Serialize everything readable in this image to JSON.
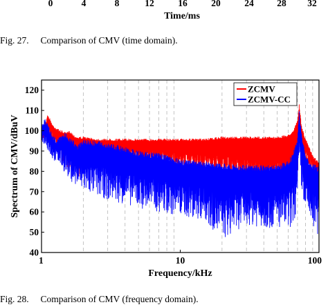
{
  "top_chart": {
    "xticks": [
      "0",
      "4",
      "8",
      "12",
      "16",
      "20",
      "24",
      "28",
      "32"
    ],
    "xlabel": "Time/ms"
  },
  "captions": {
    "fig27": "Fig. 27.     Comparison of CMV (time domain).",
    "fig28": "Fig. 28.     Comparison of CMV (frequency domain)."
  },
  "colors": {
    "ZCMV": "#ff0000",
    "ZCMV-CC": "#0000ff"
  },
  "chart_data": {
    "type": "line",
    "title": "",
    "xlabel": "Frequency/kHz",
    "ylabel": "Spectrum of CMV/dBuV",
    "xscale": "log",
    "xlim": [
      1,
      100
    ],
    "ylim": [
      40,
      125
    ],
    "xticks": [
      "1",
      "10",
      "100"
    ],
    "yticks": [
      "40",
      "50",
      "60",
      "70",
      "80",
      "90",
      "100",
      "110",
      "120"
    ],
    "grid": "dashed vertical at 2,3,4,5,6,7,8,9,20,30,40,50,60,70,80,90 kHz",
    "legend": {
      "placement": "top-right",
      "entries": [
        "ZCMV",
        "ZCMV-CC"
      ]
    },
    "series": [
      {
        "name": "ZCMV",
        "color": "#ff0000",
        "x": [
          1,
          1.05,
          1.1,
          1.15,
          1.2,
          1.3,
          1.4,
          1.5,
          1.6,
          1.7,
          1.8,
          2,
          2.5,
          3,
          4,
          5,
          7,
          10,
          15,
          20,
          30,
          40,
          50,
          60,
          65,
          70,
          72,
          75,
          80,
          85,
          90,
          95,
          100
        ],
        "upper": [
          97,
          100,
          108,
          106,
          103,
          101,
          100,
          99,
          100,
          98,
          97,
          97,
          96,
          96,
          96,
          96,
          96,
          96,
          96,
          97,
          97,
          97,
          97,
          98,
          100,
          105,
          113,
          102,
          96,
          92,
          88,
          86,
          85
        ],
        "lower": [
          95,
          96,
          97,
          96,
          95,
          92,
          86,
          79,
          82,
          86,
          76,
          80,
          86,
          87,
          85,
          84,
          83,
          80,
          79,
          77,
          72,
          70,
          69,
          68,
          70,
          78,
          93,
          88,
          84,
          82,
          79,
          78,
          76
        ]
      },
      {
        "name": "ZCMV-CC",
        "color": "#0000ff",
        "x": [
          1,
          1.05,
          1.1,
          1.15,
          1.2,
          1.3,
          1.4,
          1.5,
          1.6,
          1.7,
          1.8,
          2,
          2.5,
          3,
          4,
          5,
          7,
          10,
          15,
          20,
          30,
          40,
          50,
          60,
          65,
          70,
          72,
          75,
          80,
          85,
          90,
          95,
          100
        ],
        "upper": [
          102,
          106,
          104,
          101,
          98,
          96,
          98,
          99,
          97,
          95,
          93,
          96,
          95,
          94,
          92,
          90,
          89,
          86,
          85,
          84,
          83,
          83,
          83,
          85,
          89,
          96,
          110,
          98,
          88,
          85,
          84,
          83,
          82
        ],
        "lower": [
          95,
          93,
          91,
          88,
          86,
          84,
          82,
          78,
          76,
          74,
          72,
          70,
          68,
          66,
          64,
          62,
          60,
          58,
          56,
          46,
          54,
          52,
          52,
          51,
          54,
          60,
          84,
          70,
          60,
          55,
          52,
          50,
          48
        ]
      }
    ]
  }
}
